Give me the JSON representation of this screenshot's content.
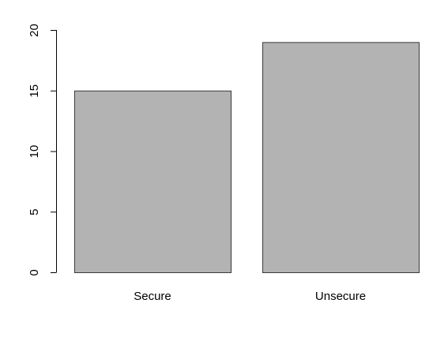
{
  "chart_data": {
    "type": "bar",
    "categories": [
      "Secure",
      "Unsecure"
    ],
    "values": [
      15,
      19
    ],
    "title": "",
    "xlabel": "",
    "ylabel": "",
    "ylim": [
      0,
      20
    ],
    "y_ticks": [
      0,
      5,
      10,
      15,
      20
    ],
    "grid": false,
    "legend": "none",
    "colors": {
      "bar_fill": "#b3b3b3",
      "bar_stroke": "#3a3a3a",
      "axis": "#000000",
      "background": "#ffffff"
    }
  }
}
